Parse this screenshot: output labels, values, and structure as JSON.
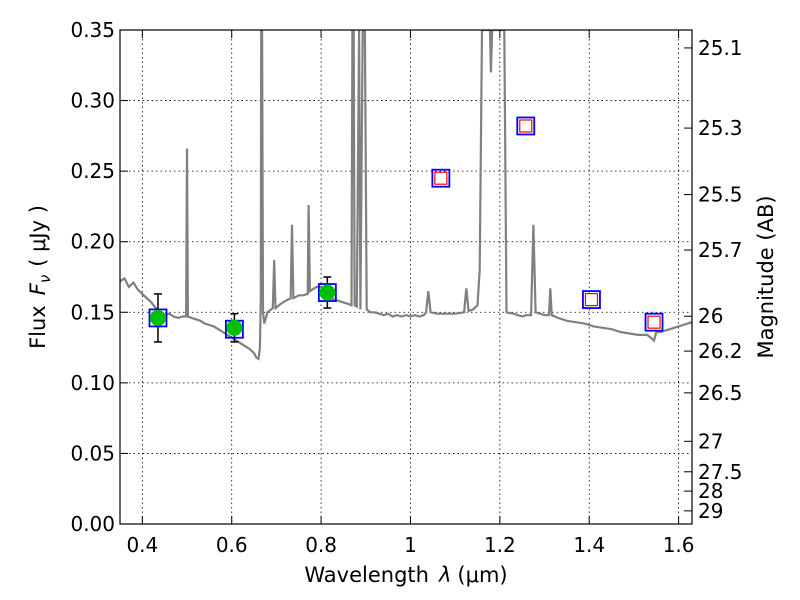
{
  "chart_data": {
    "type": "scatter",
    "title": "",
    "xlabel": "Wavelength",
    "xlabel_symbol": "λ",
    "xlabel_unit": "(μm)",
    "ylabel": "Flux",
    "ylabel_symbol": "F",
    "ylabel_subscript": "ν",
    "ylabel_unit": "( μJy )",
    "y2label": "Magnitude (AB)",
    "xlim": [
      0.35,
      1.63
    ],
    "ylim": [
      0.0,
      0.35
    ],
    "grid": true,
    "x_ticks": [
      0.4,
      0.6,
      0.8,
      1.0,
      1.2,
      1.4,
      1.6
    ],
    "x_tick_labels": [
      "0.4",
      "0.6",
      "0.8",
      "1",
      "1.2",
      "1.4",
      "1.6"
    ],
    "y_ticks": [
      0.0,
      0.05,
      0.1,
      0.15,
      0.2,
      0.25,
      0.3,
      0.35
    ],
    "y_tick_labels": [
      "0.00",
      "0.05",
      "0.10",
      "0.15",
      "0.20",
      "0.25",
      "0.30",
      "0.35"
    ],
    "mag_ticks": [
      {
        "label": "25.1",
        "flux": 0.3373
      },
      {
        "label": "25.3",
        "flux": 0.2805
      },
      {
        "label": "25.5",
        "flux": 0.2334
      },
      {
        "label": "25.7",
        "flux": 0.1941
      },
      {
        "label": "26",
        "flux": 0.1472
      },
      {
        "label": "26.2",
        "flux": 0.1225
      },
      {
        "label": "26.5",
        "flux": 0.0929
      },
      {
        "label": "27",
        "flux": 0.0586
      },
      {
        "label": "27.5",
        "flux": 0.037
      },
      {
        "label": "28",
        "flux": 0.0233
      },
      {
        "label": "29",
        "flux": 0.0093
      }
    ],
    "observed_points": [
      {
        "x": 0.435,
        "y": 0.146,
        "yerr": 0.017
      },
      {
        "x": 0.606,
        "y": 0.139,
        "yerr": 0.01
      },
      {
        "x": 0.814,
        "y": 0.164,
        "yerr": 0.011
      }
    ],
    "model_points": [
      {
        "x": 0.435,
        "y": 0.146,
        "filled": true
      },
      {
        "x": 0.606,
        "y": 0.138,
        "filled": true
      },
      {
        "x": 0.814,
        "y": 0.164,
        "filled": true
      },
      {
        "x": 1.068,
        "y": 0.245,
        "filled": false
      },
      {
        "x": 1.258,
        "y": 0.282,
        "filled": false
      },
      {
        "x": 1.405,
        "y": 0.159,
        "filled": false
      },
      {
        "x": 1.545,
        "y": 0.143,
        "filled": false
      }
    ],
    "template_spectrum": [
      [
        0.35,
        0.172
      ],
      [
        0.36,
        0.174
      ],
      [
        0.37,
        0.168
      ],
      [
        0.38,
        0.171
      ],
      [
        0.39,
        0.166
      ],
      [
        0.4,
        0.163
      ],
      [
        0.41,
        0.16
      ],
      [
        0.42,
        0.157
      ],
      [
        0.43,
        0.153
      ],
      [
        0.44,
        0.15
      ],
      [
        0.45,
        0.148
      ],
      [
        0.46,
        0.149
      ],
      [
        0.47,
        0.147
      ],
      [
        0.48,
        0.146
      ],
      [
        0.49,
        0.147
      ],
      [
        0.498,
        0.147
      ],
      [
        0.5,
        0.266
      ],
      [
        0.502,
        0.147
      ],
      [
        0.51,
        0.146
      ],
      [
        0.52,
        0.145
      ],
      [
        0.53,
        0.144
      ],
      [
        0.54,
        0.142
      ],
      [
        0.55,
        0.141
      ],
      [
        0.56,
        0.14
      ],
      [
        0.57,
        0.138
      ],
      [
        0.58,
        0.136
      ],
      [
        0.59,
        0.134
      ],
      [
        0.6,
        0.132
      ],
      [
        0.61,
        0.13
      ],
      [
        0.62,
        0.128
      ],
      [
        0.63,
        0.126
      ],
      [
        0.64,
        0.124
      ],
      [
        0.65,
        0.121
      ],
      [
        0.655,
        0.118
      ],
      [
        0.66,
        0.117
      ],
      [
        0.663,
        0.125
      ],
      [
        0.665,
        0.16
      ],
      [
        0.666,
        0.35
      ],
      [
        0.668,
        0.35
      ],
      [
        0.67,
        0.15
      ],
      [
        0.673,
        0.142
      ],
      [
        0.68,
        0.15
      ],
      [
        0.688,
        0.152
      ],
      [
        0.692,
        0.153
      ],
      [
        0.695,
        0.187
      ],
      [
        0.698,
        0.153
      ],
      [
        0.71,
        0.156
      ],
      [
        0.72,
        0.158
      ],
      [
        0.732,
        0.16
      ],
      [
        0.735,
        0.212
      ],
      [
        0.738,
        0.16
      ],
      [
        0.75,
        0.162
      ],
      [
        0.76,
        0.162
      ],
      [
        0.77,
        0.163
      ],
      [
        0.772,
        0.226
      ],
      [
        0.775,
        0.165
      ],
      [
        0.79,
        0.168
      ],
      [
        0.8,
        0.168
      ],
      [
        0.81,
        0.163
      ],
      [
        0.82,
        0.16
      ],
      [
        0.83,
        0.159
      ],
      [
        0.84,
        0.158
      ],
      [
        0.85,
        0.157
      ],
      [
        0.86,
        0.156
      ],
      [
        0.868,
        0.155
      ],
      [
        0.87,
        0.35
      ],
      [
        0.873,
        0.35
      ],
      [
        0.875,
        0.155
      ],
      [
        0.88,
        0.154
      ],
      [
        0.885,
        0.35
      ],
      [
        0.888,
        0.152
      ],
      [
        0.893,
        0.35
      ],
      [
        0.898,
        0.35
      ],
      [
        0.902,
        0.152
      ],
      [
        0.91,
        0.15
      ],
      [
        0.92,
        0.15
      ],
      [
        0.93,
        0.149
      ],
      [
        0.94,
        0.148
      ],
      [
        0.95,
        0.149
      ],
      [
        0.96,
        0.147
      ],
      [
        0.97,
        0.148
      ],
      [
        0.98,
        0.147
      ],
      [
        0.99,
        0.148
      ],
      [
        1.0,
        0.147
      ],
      [
        1.01,
        0.148
      ],
      [
        1.02,
        0.147
      ],
      [
        1.03,
        0.148
      ],
      [
        1.035,
        0.15
      ],
      [
        1.04,
        0.165
      ],
      [
        1.045,
        0.15
      ],
      [
        1.06,
        0.149
      ],
      [
        1.08,
        0.149
      ],
      [
        1.1,
        0.149
      ],
      [
        1.12,
        0.15
      ],
      [
        1.125,
        0.167
      ],
      [
        1.13,
        0.151
      ],
      [
        1.14,
        0.152
      ],
      [
        1.15,
        0.155
      ],
      [
        1.155,
        0.18
      ],
      [
        1.16,
        0.35
      ],
      [
        1.17,
        0.35
      ],
      [
        1.178,
        0.35
      ],
      [
        1.18,
        0.32
      ],
      [
        1.183,
        0.35
      ],
      [
        1.21,
        0.35
      ],
      [
        1.215,
        0.15
      ],
      [
        1.23,
        0.149
      ],
      [
        1.25,
        0.147
      ],
      [
        1.26,
        0.148
      ],
      [
        1.27,
        0.148
      ],
      [
        1.275,
        0.212
      ],
      [
        1.28,
        0.15
      ],
      [
        1.29,
        0.149
      ],
      [
        1.3,
        0.148
      ],
      [
        1.31,
        0.148
      ],
      [
        1.313,
        0.167
      ],
      [
        1.316,
        0.148
      ],
      [
        1.33,
        0.146
      ],
      [
        1.35,
        0.144
      ],
      [
        1.37,
        0.143
      ],
      [
        1.39,
        0.142
      ],
      [
        1.41,
        0.14
      ],
      [
        1.43,
        0.139
      ],
      [
        1.45,
        0.138
      ],
      [
        1.47,
        0.136
      ],
      [
        1.49,
        0.135
      ],
      [
        1.51,
        0.134
      ],
      [
        1.53,
        0.134
      ],
      [
        1.545,
        0.13
      ],
      [
        1.55,
        0.136
      ],
      [
        1.56,
        0.136
      ],
      [
        1.58,
        0.138
      ],
      [
        1.6,
        0.14
      ],
      [
        1.61,
        0.141
      ],
      [
        1.62,
        0.142
      ],
      [
        1.63,
        0.143
      ]
    ],
    "colors": {
      "spectrum": "#808080",
      "observed_fill": "#00c000",
      "model_outline": "#0000ff",
      "nir_marker_edge": "#ff0000",
      "nir_marker_fill": "#ffffff",
      "errorbar": "#000000"
    }
  }
}
